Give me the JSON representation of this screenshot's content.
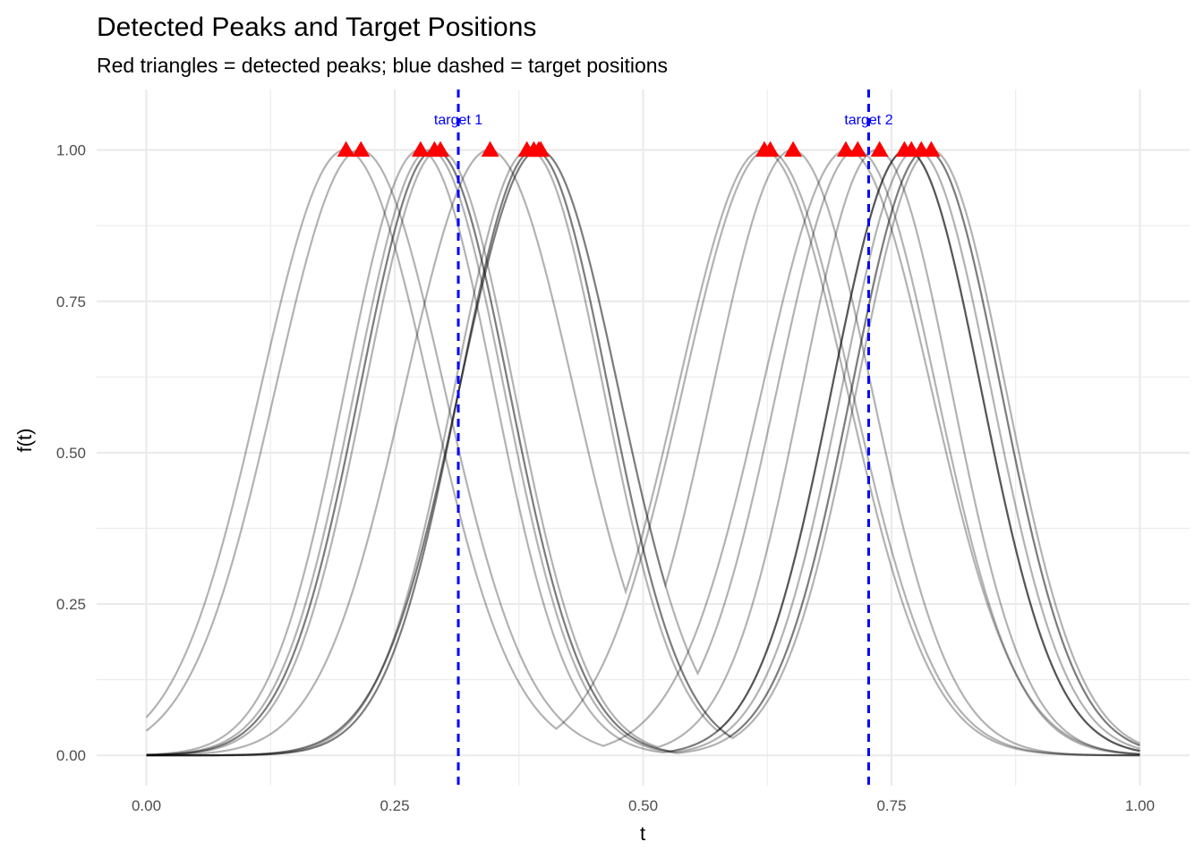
{
  "chart_data": {
    "type": "line",
    "title": "Detected Peaks and Target Positions",
    "subtitle": "Red triangles = detected peaks; blue dashed = target positions",
    "xlabel": "t",
    "ylabel": "f(t)",
    "xlim": [
      0,
      1
    ],
    "ylim": [
      -0.05,
      1.1
    ],
    "x_ticks": [
      0,
      0.25,
      0.5,
      0.75,
      1
    ],
    "x_tick_labels": [
      "0.00",
      "0.25",
      "0.50",
      "0.75",
      "1.00"
    ],
    "y_ticks": [
      0,
      0.25,
      0.5,
      0.75,
      1
    ],
    "y_tick_labels": [
      "0.00",
      "0.25",
      "0.50",
      "0.75",
      "1.00"
    ],
    "grid": true,
    "curve_color": "#000000",
    "curve_opacity": 0.3,
    "peak_color": "#ff0000",
    "target_color": "#0000ff",
    "curves": [
      {
        "peaks": [
          0.2,
          0.625
        ],
        "sigma": 0.085
      },
      {
        "peaks": [
          0.215,
          0.705
        ],
        "sigma": 0.085
      },
      {
        "peaks": [
          0.275,
          0.765
        ],
        "sigma": 0.075
      },
      {
        "peaks": [
          0.285,
          0.785
        ],
        "sigma": 0.075
      },
      {
        "peaks": [
          0.29,
          0.765
        ],
        "sigma": 0.075
      },
      {
        "peaks": [
          0.29,
          0.775
        ],
        "sigma": 0.075
      },
      {
        "peaks": [
          0.295,
          0.735
        ],
        "sigma": 0.075
      },
      {
        "peaks": [
          0.345,
          0.62
        ],
        "sigma": 0.085
      },
      {
        "peaks": [
          0.385,
          0.765
        ],
        "sigma": 0.075
      },
      {
        "peaks": [
          0.39,
          0.79
        ],
        "sigma": 0.075
      },
      {
        "peaks": [
          0.395,
          0.715
        ],
        "sigma": 0.08
      },
      {
        "peaks": [
          0.395,
          0.65
        ],
        "sigma": 0.08
      },
      {
        "peaks": [
          0.39,
          0.785
        ],
        "sigma": 0.075
      }
    ],
    "detected_peaks": [
      {
        "t": 0.201,
        "y": 1.0
      },
      {
        "t": 0.216,
        "y": 1.0
      },
      {
        "t": 0.276,
        "y": 1.0
      },
      {
        "t": 0.29,
        "y": 1.0
      },
      {
        "t": 0.296,
        "y": 1.0
      },
      {
        "t": 0.346,
        "y": 1.0
      },
      {
        "t": 0.383,
        "y": 1.0
      },
      {
        "t": 0.39,
        "y": 1.0
      },
      {
        "t": 0.397,
        "y": 1.0
      },
      {
        "t": 0.395,
        "y": 1.0
      },
      {
        "t": 0.622,
        "y": 1.0
      },
      {
        "t": 0.628,
        "y": 1.0
      },
      {
        "t": 0.651,
        "y": 1.0
      },
      {
        "t": 0.704,
        "y": 1.0
      },
      {
        "t": 0.716,
        "y": 1.0
      },
      {
        "t": 0.738,
        "y": 1.0
      },
      {
        "t": 0.763,
        "y": 1.0
      },
      {
        "t": 0.77,
        "y": 1.0
      },
      {
        "t": 0.78,
        "y": 1.0
      },
      {
        "t": 0.79,
        "y": 1.0
      }
    ],
    "targets": [
      {
        "t": 0.314,
        "label": "target 1"
      },
      {
        "t": 0.727,
        "label": "target 2"
      }
    ]
  }
}
